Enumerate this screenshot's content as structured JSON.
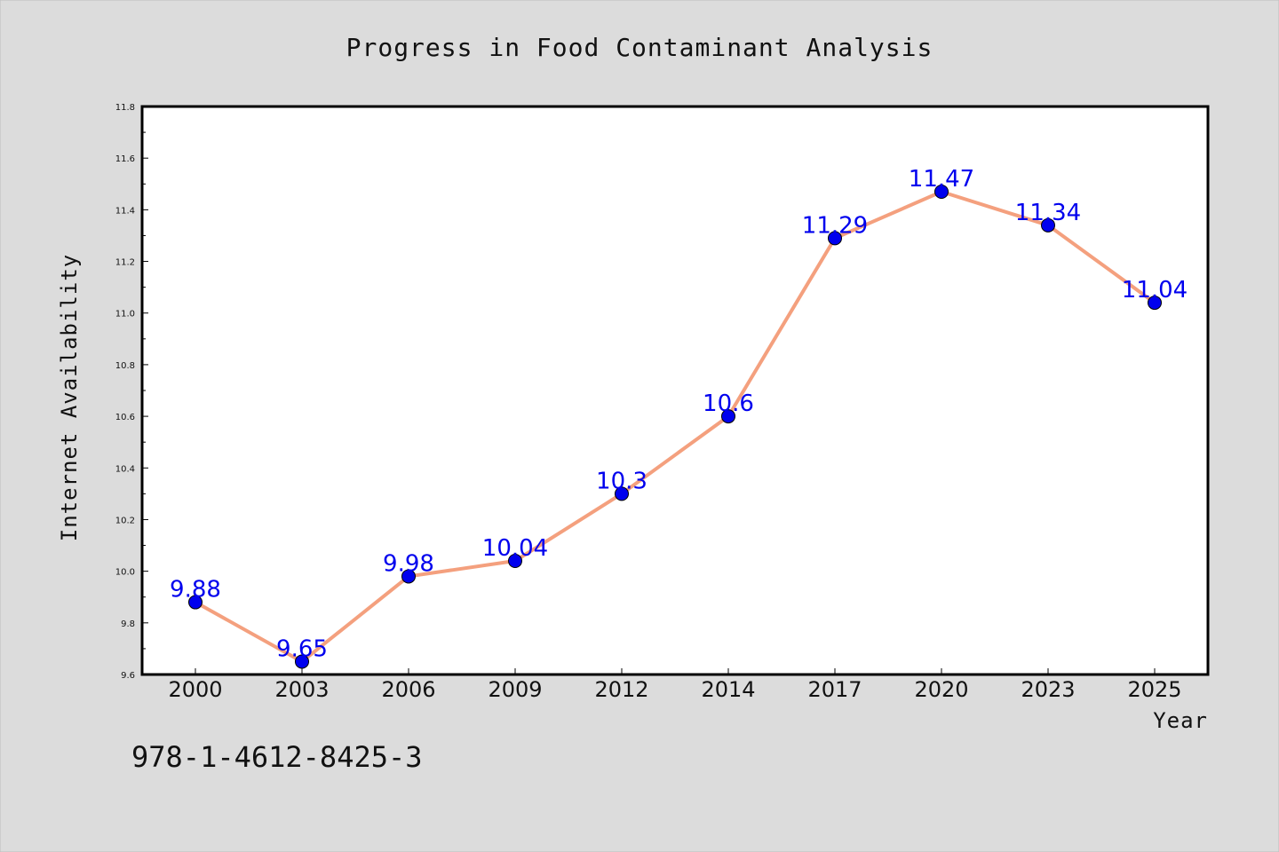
{
  "chart_data": {
    "type": "line",
    "title": "Progress in Food Contaminant Analysis",
    "xlabel": "Year",
    "ylabel": "Internet Availability",
    "categories": [
      "2000",
      "2003",
      "2006",
      "2009",
      "2012",
      "2014",
      "2017",
      "2020",
      "2023",
      "2025"
    ],
    "series": [
      {
        "values": [
          9.88,
          9.65,
          9.98,
          10.04,
          10.3,
          10.6,
          11.29,
          11.47,
          11.34,
          11.04
        ],
        "labels": [
          "9.88",
          "9.65",
          "9.98",
          "10.04",
          "10.3",
          "10.6",
          "11.29",
          "11.47",
          "11.34",
          "11.04"
        ]
      }
    ],
    "ylim": [
      9.6,
      11.8
    ],
    "yticks": [
      "9.6",
      "9.8",
      "10.0",
      "10.2",
      "10.4",
      "10.6",
      "10.8",
      "11.0",
      "11.2",
      "11.4",
      "11.6",
      "11.8"
    ],
    "grid": false,
    "line_color": "#f4a07e",
    "marker_color": "#0000ee",
    "label_color": "#0000ee",
    "background": "#dcdcdc",
    "plot_background": "#ffffff"
  },
  "footer": {
    "isbn": "978-1-4612-8425-3"
  }
}
